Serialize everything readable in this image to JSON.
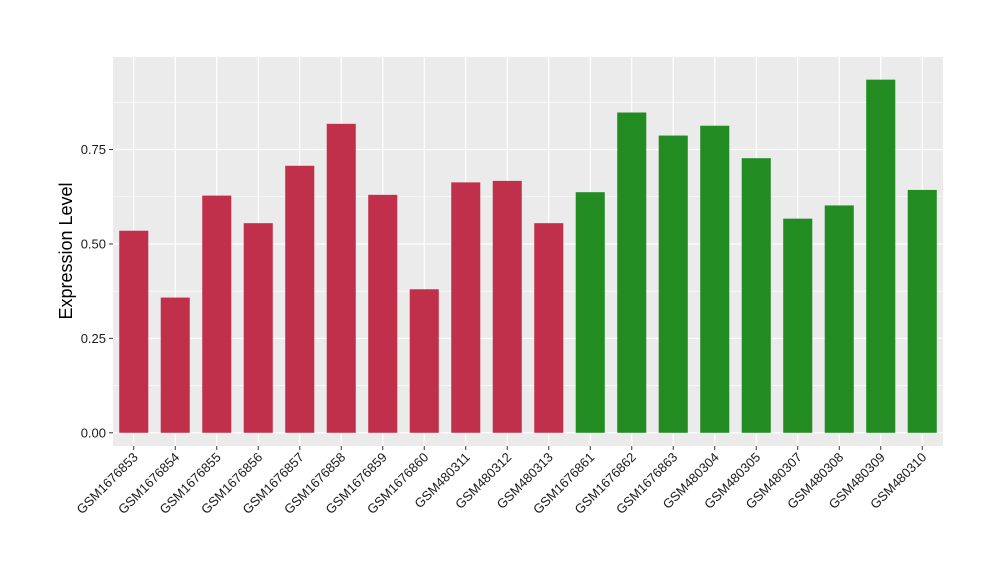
{
  "chart_data": {
    "type": "bar",
    "title": "",
    "xlabel": "",
    "ylabel": "Expression Level",
    "ylim": [
      -0.035,
      0.995
    ],
    "yticks": [
      0.0,
      0.25,
      0.5,
      0.75
    ],
    "ytick_labels": [
      "0.00",
      "0.25",
      "0.50",
      "0.75"
    ],
    "grid": true,
    "legend": "none",
    "categories": [
      "GSM1676853",
      "GSM1676854",
      "GSM1676855",
      "GSM1676856",
      "GSM1676857",
      "GSM1676858",
      "GSM1676859",
      "GSM1676860",
      "GSM480311",
      "GSM480312",
      "GSM480313",
      "GSM1676861",
      "GSM1676862",
      "GSM1676863",
      "GSM480304",
      "GSM480305",
      "GSM480307",
      "GSM480308",
      "GSM480309",
      "GSM480310"
    ],
    "values": [
      0.535,
      0.358,
      0.628,
      0.555,
      0.707,
      0.818,
      0.63,
      0.38,
      0.663,
      0.667,
      0.555,
      0.637,
      0.848,
      0.787,
      0.813,
      0.727,
      0.567,
      0.602,
      0.935,
      0.643
    ],
    "groups": [
      "red",
      "red",
      "red",
      "red",
      "red",
      "red",
      "red",
      "red",
      "red",
      "red",
      "red",
      "green",
      "green",
      "green",
      "green",
      "green",
      "green",
      "green",
      "green",
      "green"
    ],
    "colors": {
      "red": "#c0304a",
      "green": "#228b22",
      "panel": "#ebebeb",
      "grid": "#ffffff"
    }
  }
}
